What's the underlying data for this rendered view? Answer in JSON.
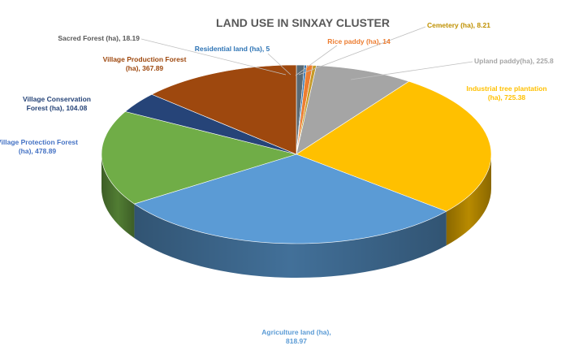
{
  "chart_data": {
    "type": "pie",
    "title": "LAND USE IN SINXAY CLUSTER",
    "slices": [
      {
        "name": "Sacred Forest (ha)",
        "value": 18.19,
        "color": "#5a6a74",
        "label_color": "#595959",
        "label": [
          "Sacred Forest (ha), 18.19"
        ]
      },
      {
        "name": "Residential land (ha)",
        "value": 5,
        "color": "#2e74b5",
        "label_color": "#2e74b5",
        "label": [
          "Residential land (ha), 5"
        ]
      },
      {
        "name": "Rice paddy (ha)",
        "value": 14,
        "color": "#ed7d31",
        "label_color": "#ed7d31",
        "label": [
          "Rice paddy (ha), 14"
        ]
      },
      {
        "name": "Cemetery (ha)",
        "value": 8.21,
        "color": "#c59a28",
        "label_color": "#bf9000",
        "label": [
          "Cemetery (ha), 8.21"
        ]
      },
      {
        "name": "Upland paddy (ha)",
        "value": 225.8,
        "color": "#a5a5a5",
        "label_color": "#a5a5a5",
        "label": [
          "Upland paddy(ha), 225.8"
        ]
      },
      {
        "name": "Industrial tree plantation (ha)",
        "value": 725.38,
        "color": "#ffc000",
        "label_color": "#ffc000",
        "label": [
          "Industrial tree plantation",
          "(ha), 725.38"
        ]
      },
      {
        "name": "Agriculture land (ha)",
        "value": 818.97,
        "color": "#5b9bd5",
        "label_color": "#5b9bd5",
        "label": [
          "Agriculture land (ha),",
          "818.97"
        ]
      },
      {
        "name": "Village Protection Forest (ha)",
        "value": 478.89,
        "color": "#70ad47",
        "label_color": "#4472c4",
        "label": [
          "Village Protection Forest",
          "(ha), 478.89"
        ]
      },
      {
        "name": "Village Conservation Forest (ha)",
        "value": 104.08,
        "color": "#264478",
        "label_color": "#264478",
        "label": [
          "Village Conservation",
          "Forest (ha), 104.08"
        ]
      },
      {
        "name": "Village Production Forest (ha)",
        "value": 367.89,
        "color": "#9e480e",
        "label_color": "#9e480e",
        "label": [
          "Village Production Forest",
          "(ha), 367.89"
        ]
      }
    ],
    "start_angle_deg": -90,
    "direction": "clockwise",
    "style": "3d"
  }
}
